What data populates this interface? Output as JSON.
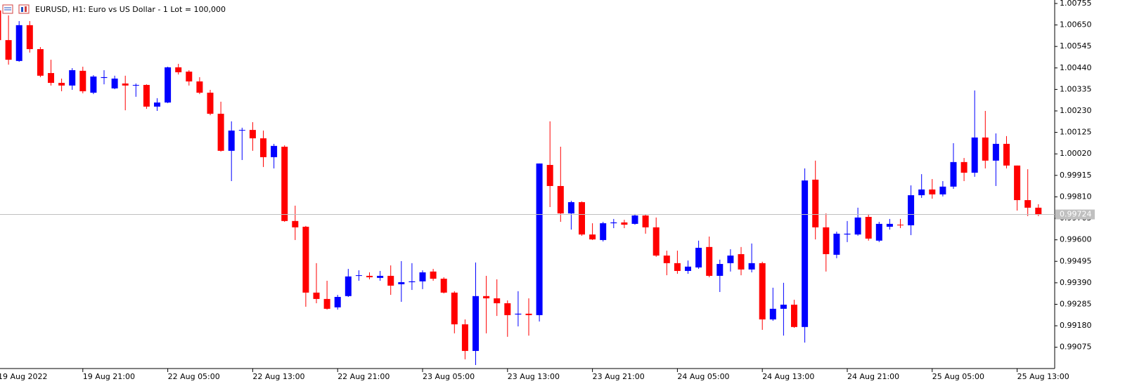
{
  "chart_data": {
    "type": "candlestick",
    "title": "EURUSD, H1:  Euro vs US Dollar - 1 Lot = 100,000",
    "up_color": "#0000ff",
    "down_color": "#ff0000",
    "categories": [
      "19 Aug 2022",
      null,
      null,
      null,
      null,
      null,
      null,
      null,
      "19 Aug 21:00",
      null,
      null,
      null,
      null,
      null,
      null,
      null,
      "22 Aug 05:00",
      null,
      null,
      null,
      null,
      null,
      null,
      null,
      "22 Aug 13:00",
      null,
      null,
      null,
      null,
      null,
      null,
      null,
      "22 Aug 21:00",
      null,
      null,
      null,
      null,
      null,
      null,
      null,
      "23 Aug 05:00",
      null,
      null,
      null,
      null,
      null,
      null,
      null,
      "23 Aug 13:00",
      null,
      null,
      null,
      null,
      null,
      null,
      null,
      "23 Aug 21:00",
      null,
      null,
      null,
      null,
      null,
      null,
      null,
      "24 Aug 05:00",
      null,
      null,
      null,
      null,
      null,
      null,
      null,
      "24 Aug 13:00",
      null,
      null,
      null,
      null,
      null,
      null,
      null,
      "24 Aug 21:00",
      null,
      null,
      null,
      null,
      null,
      null,
      null,
      "25 Aug 05:00",
      null,
      null,
      null,
      null,
      null,
      null,
      null,
      "25 Aug 13:00",
      null,
      null
    ],
    "open": [
      1.00721,
      1.00576,
      1.00474,
      1.00649,
      1.00532,
      1.00415,
      1.00367,
      1.00354,
      1.00426,
      1.00319,
      1.00391,
      1.0034,
      1.00364,
      1.00354,
      1.00357,
      1.00251,
      1.00271,
      1.00443,
      1.00422,
      1.00374,
      1.00319,
      1.00216,
      1.00035,
      1.00134,
      1.00137,
      1.00096,
      1.00004,
      1.00055,
      0.99692,
      0.99664,
      0.99342,
      0.99311,
      0.9927,
      0.99325,
      0.99424,
      0.99424,
      0.99414,
      0.99424,
      0.99383,
      0.99393,
      0.99397,
      0.99445,
      0.9941,
      0.99342,
      0.99187,
      0.99057,
      0.99325,
      0.99314,
      0.9929,
      0.99235,
      0.99239,
      0.99232,
      0.99966,
      0.99863,
      0.99729,
      0.99784,
      0.99626,
      0.99599,
      0.99681,
      0.99685,
      0.99678,
      0.99719,
      0.99661,
      0.99523,
      0.99486,
      0.99448,
      0.99465,
      0.99565,
      0.99424,
      0.99486,
      0.9953,
      0.99455,
      0.99486,
      0.99211,
      0.99263,
      0.99283,
      0.99174,
      0.99894,
      0.99661,
      0.99527,
      0.99626,
      0.99626,
      0.99712,
      0.99596,
      0.99664,
      0.99674,
      0.99671,
      0.99818,
      0.99846,
      0.99822,
      0.9986,
      0.9998,
      0.99928,
      1.001,
      0.99987,
      1.00069,
      0.99963,
      0.99794,
      0.99757
    ],
    "high": [
      1.00762,
      1.00697,
      1.00669,
      1.00669,
      1.00542,
      1.0048,
      1.00388,
      1.00439,
      1.00446,
      1.00405,
      1.00429,
      1.00402,
      1.00402,
      1.00364,
      1.0036,
      1.00292,
      1.00446,
      1.0046,
      1.00429,
      1.00395,
      1.00333,
      1.00275,
      1.00179,
      1.00148,
      1.00175,
      1.00134,
      1.00069,
      1.00062,
      0.99767,
      0.99668,
      0.99486,
      0.994,
      0.99331,
      0.99458,
      0.99451,
      0.99441,
      0.99448,
      0.99475,
      0.99496,
      0.99486,
      0.99451,
      0.99458,
      0.99417,
      0.99349,
      0.99211,
      0.99489,
      0.99424,
      0.99407,
      0.99304,
      0.99349,
      0.99314,
      0.99973,
      1.00179,
      1.00055,
      0.99791,
      0.99788,
      0.99681,
      0.99688,
      0.99702,
      0.99698,
      0.99726,
      0.99722,
      0.99709,
      0.99547,
      0.99547,
      0.99499,
      0.99596,
      0.99616,
      0.99503,
      0.99554,
      0.99565,
      0.99582,
      0.99493,
      0.99366,
      0.9939,
      0.99307,
      0.99949,
      0.99987,
      0.99729,
      0.9964,
      0.99692,
      0.99757,
      0.99726,
      0.99688,
      0.99702,
      0.99702,
      0.99866,
      0.99921,
      0.99897,
      0.99887,
      1.00072,
      1.0,
      1.0033,
      1.0023,
      1.0012,
      1.00107,
      0.99963,
      0.99945,
      0.99774
    ],
    "low": [
      1.00559,
      1.00456,
      1.0047,
      1.00515,
      1.00395,
      1.00354,
      1.00326,
      1.00333,
      1.00316,
      1.00312,
      1.0036,
      1.00336,
      1.00233,
      1.00299,
      1.0024,
      1.0023,
      1.00268,
      1.00408,
      1.00354,
      1.00312,
      1.00209,
      1.00031,
      0.99887,
      0.9999,
      1.00035,
      0.99956,
      0.99949,
      0.99688,
      0.99599,
      0.99273,
      0.9929,
      0.99259,
      0.99259,
      0.99321,
      0.994,
      0.99407,
      0.994,
      0.99331,
      0.99297,
      0.99355,
      0.99359,
      0.994,
      0.99338,
      0.99143,
      0.99016,
      0.98988,
      0.99143,
      0.99228,
      0.99126,
      0.99177,
      0.99132,
      0.99201,
      0.9976,
      0.99688,
      0.9965,
      0.9962,
      0.99599,
      0.99592,
      0.99657,
      0.99657,
      0.99674,
      0.9963,
      0.99517,
      0.99427,
      0.99434,
      0.99434,
      0.99458,
      0.99417,
      0.99345,
      0.99445,
      0.99427,
      0.99441,
      0.9916,
      0.99204,
      0.99132,
      0.9917,
      0.99098,
      0.99602,
      0.99445,
      0.9951,
      0.99589,
      0.9962,
      0.99596,
      0.99589,
      0.9965,
      0.99657,
      0.99623,
      0.99805,
      0.99801,
      0.99812,
      0.99849,
      0.99887,
      0.99908,
      0.99949,
      0.99863,
      0.99949,
      0.99743,
      0.99716,
      0.99716
    ],
    "close": [
      1.00576,
      1.0048,
      1.00649,
      1.00532,
      1.00402,
      1.00367,
      1.00354,
      1.00429,
      1.00326,
      1.00398,
      1.00395,
      1.00388,
      1.00354,
      1.00357,
      1.00251,
      1.00271,
      1.00443,
      1.00419,
      1.00374,
      1.00319,
      1.00216,
      1.00035,
      1.00134,
      1.00137,
      1.00096,
      1.00004,
      1.00059,
      0.99692,
      0.99661,
      0.99342,
      0.99311,
      0.99263,
      0.99321,
      0.99421,
      0.99427,
      0.99417,
      0.99424,
      0.99376,
      0.99393,
      0.99397,
      0.99441,
      0.9941,
      0.99342,
      0.99187,
      0.99057,
      0.99325,
      0.99314,
      0.9929,
      0.99232,
      0.99239,
      0.99232,
      0.99973,
      0.99863,
      0.99729,
      0.99784,
      0.99626,
      0.99602,
      0.99681,
      0.99685,
      0.99674,
      0.99719,
      0.99661,
      0.99523,
      0.99486,
      0.99448,
      0.99469,
      0.99561,
      0.99424,
      0.99482,
      0.99523,
      0.99455,
      0.99486,
      0.99211,
      0.99263,
      0.99283,
      0.99174,
      0.9989,
      0.99661,
      0.9953,
      0.9963,
      0.9963,
      0.99709,
      0.99606,
      0.99678,
      0.99678,
      0.99671,
      0.99818,
      0.99846,
      0.99822,
      0.9986,
      0.9998,
      0.99928,
      1.001,
      0.99987,
      1.00069,
      0.99963,
      0.99794,
      0.99757,
      0.99724
    ],
    "current_price": 0.99724,
    "ylim": [
      0.98971,
      1.00772
    ],
    "yticks": [
      1.00755,
      {
        "value": 1.0065,
        "label": "1.00650"
      },
      1.00545,
      {
        "value": 1.0044,
        "label": "1.00440"
      },
      1.00335,
      {
        "value": 1.0023,
        "label": "1.00230"
      },
      1.00125,
      {
        "value": 1.0002,
        "label": "1.00020"
      },
      0.99915,
      {
        "value": 0.9981,
        "label": "0.99810"
      },
      0.99705,
      {
        "value": 0.996,
        "label": "0.99600"
      },
      0.99495,
      {
        "value": 0.9939,
        "label": "0.99390"
      },
      0.99285,
      {
        "value": 0.9918,
        "label": "0.99180"
      },
      0.99075
    ]
  }
}
